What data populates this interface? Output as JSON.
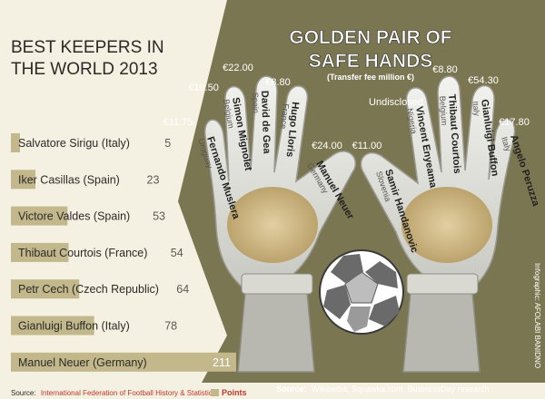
{
  "chart_data": {
    "type": "bar",
    "title": "BEST KEEPERS IN THE WORLD 2013",
    "title_lines": [
      "BEST KEEPERS IN",
      "THE WORLD 2013"
    ],
    "categories": [
      "Salvatore Sirigu (Italy)",
      "Iker Casillas (Spain)",
      "Victore Valdes (Spain)",
      "Thibaut Courtois (France)",
      "Petr Cech (Czech Republic)",
      "Gianluigi Buffon (Italy)",
      "Manuel Neuer (Germany)"
    ],
    "values": [
      5,
      23,
      53,
      54,
      64,
      78,
      211
    ],
    "legend": "Points",
    "xlim": [
      0,
      211
    ]
  },
  "source_left": {
    "label": "Source:",
    "text": "International Federation of Football History & Statistic"
  },
  "transfer": {
    "title_lines": [
      "GOLDEN PAIR OF",
      "SAFE HANDS"
    ],
    "subtitle": "(Transfer fee million €)",
    "left_glove": [
      {
        "name": "Fernando Muslera",
        "country": "Uruguay",
        "fee": "€11.75"
      },
      {
        "name": "Simon Mignolet",
        "country": "Belgium",
        "fee": "€10.50"
      },
      {
        "name": "David de Gea",
        "country": "Spain",
        "fee": "€22.00"
      },
      {
        "name": "Hugo Lloris",
        "country": "France",
        "fee": "€8.80"
      },
      {
        "name": "Manuel Neuer",
        "country": "Germany",
        "fee": "€24.00"
      }
    ],
    "right_glove": [
      {
        "name": "Samir Handanovic",
        "country": "Slovenia",
        "fee": "€11.00"
      },
      {
        "name": "Vincent Enyeama",
        "country": "Nigeria",
        "fee": "Undisclosed"
      },
      {
        "name": "Thibaut Courtois",
        "country": "Belgium",
        "fee": "€8.80"
      },
      {
        "name": "Gianluigi Buffon",
        "country": "Italy",
        "fee": "€54.30"
      },
      {
        "name": "Angelo Peruzza",
        "country": "Italy",
        "fee": "€17.80"
      }
    ]
  },
  "source_right": {
    "label": "Source:",
    "text": "Wikipedia, Squawka.com, BusinessDay research"
  },
  "credit": "Infographic: AFOLABI BANIDNO",
  "colors": {
    "panel": "#7b7652",
    "bar": "#c2b88c",
    "bar_label": "#2b2a26",
    "value": "#5d5a50",
    "accent": "#c0392b"
  }
}
